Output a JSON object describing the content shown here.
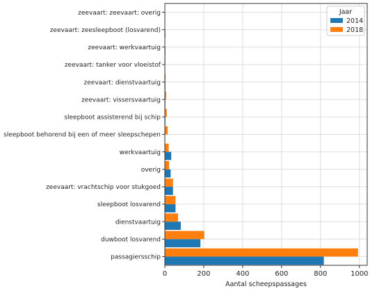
{
  "chart_data": {
    "type": "bar",
    "orientation": "horizontal",
    "title": "",
    "xlabel": "Aantal scheepspassages",
    "ylabel": "",
    "xlim": [
      0,
      1040
    ],
    "xticks": [
      0,
      200,
      400,
      600,
      800,
      1000
    ],
    "grid": true,
    "legend": {
      "title": "Jaar",
      "placement": "top-right"
    },
    "categories": [
      "passagiersschip",
      "duwboot losvarend",
      "dienstvaartuig",
      "sleepboot losvarend",
      "zeevaart: vrachtschip voor stukgoed",
      "overig",
      "werkvaartuig",
      "sleepboot behorend bij een of meer sleepschepen",
      "sleepboot assisterend bij schip",
      "zeevaart: vissersvaartuig",
      "zeevaart: dienstvaartuig",
      "zeevaart: tanker voor vloeistof",
      "zeevaart: werkvaartuig",
      "zeevaart: zeesleepboot (losvarend)",
      "zeevaart: zeevaart: overig"
    ],
    "series": [
      {
        "name": "2014",
        "color": "#1f77b4",
        "values": [
          817,
          183,
          82,
          55,
          42,
          30,
          33,
          2,
          3,
          3,
          3,
          2,
          3,
          3,
          2
        ]
      },
      {
        "name": "2018",
        "color": "#ff7f0e",
        "values": [
          993,
          203,
          68,
          55,
          42,
          22,
          20,
          15,
          10,
          7,
          4,
          3,
          2,
          2,
          1
        ]
      }
    ]
  }
}
